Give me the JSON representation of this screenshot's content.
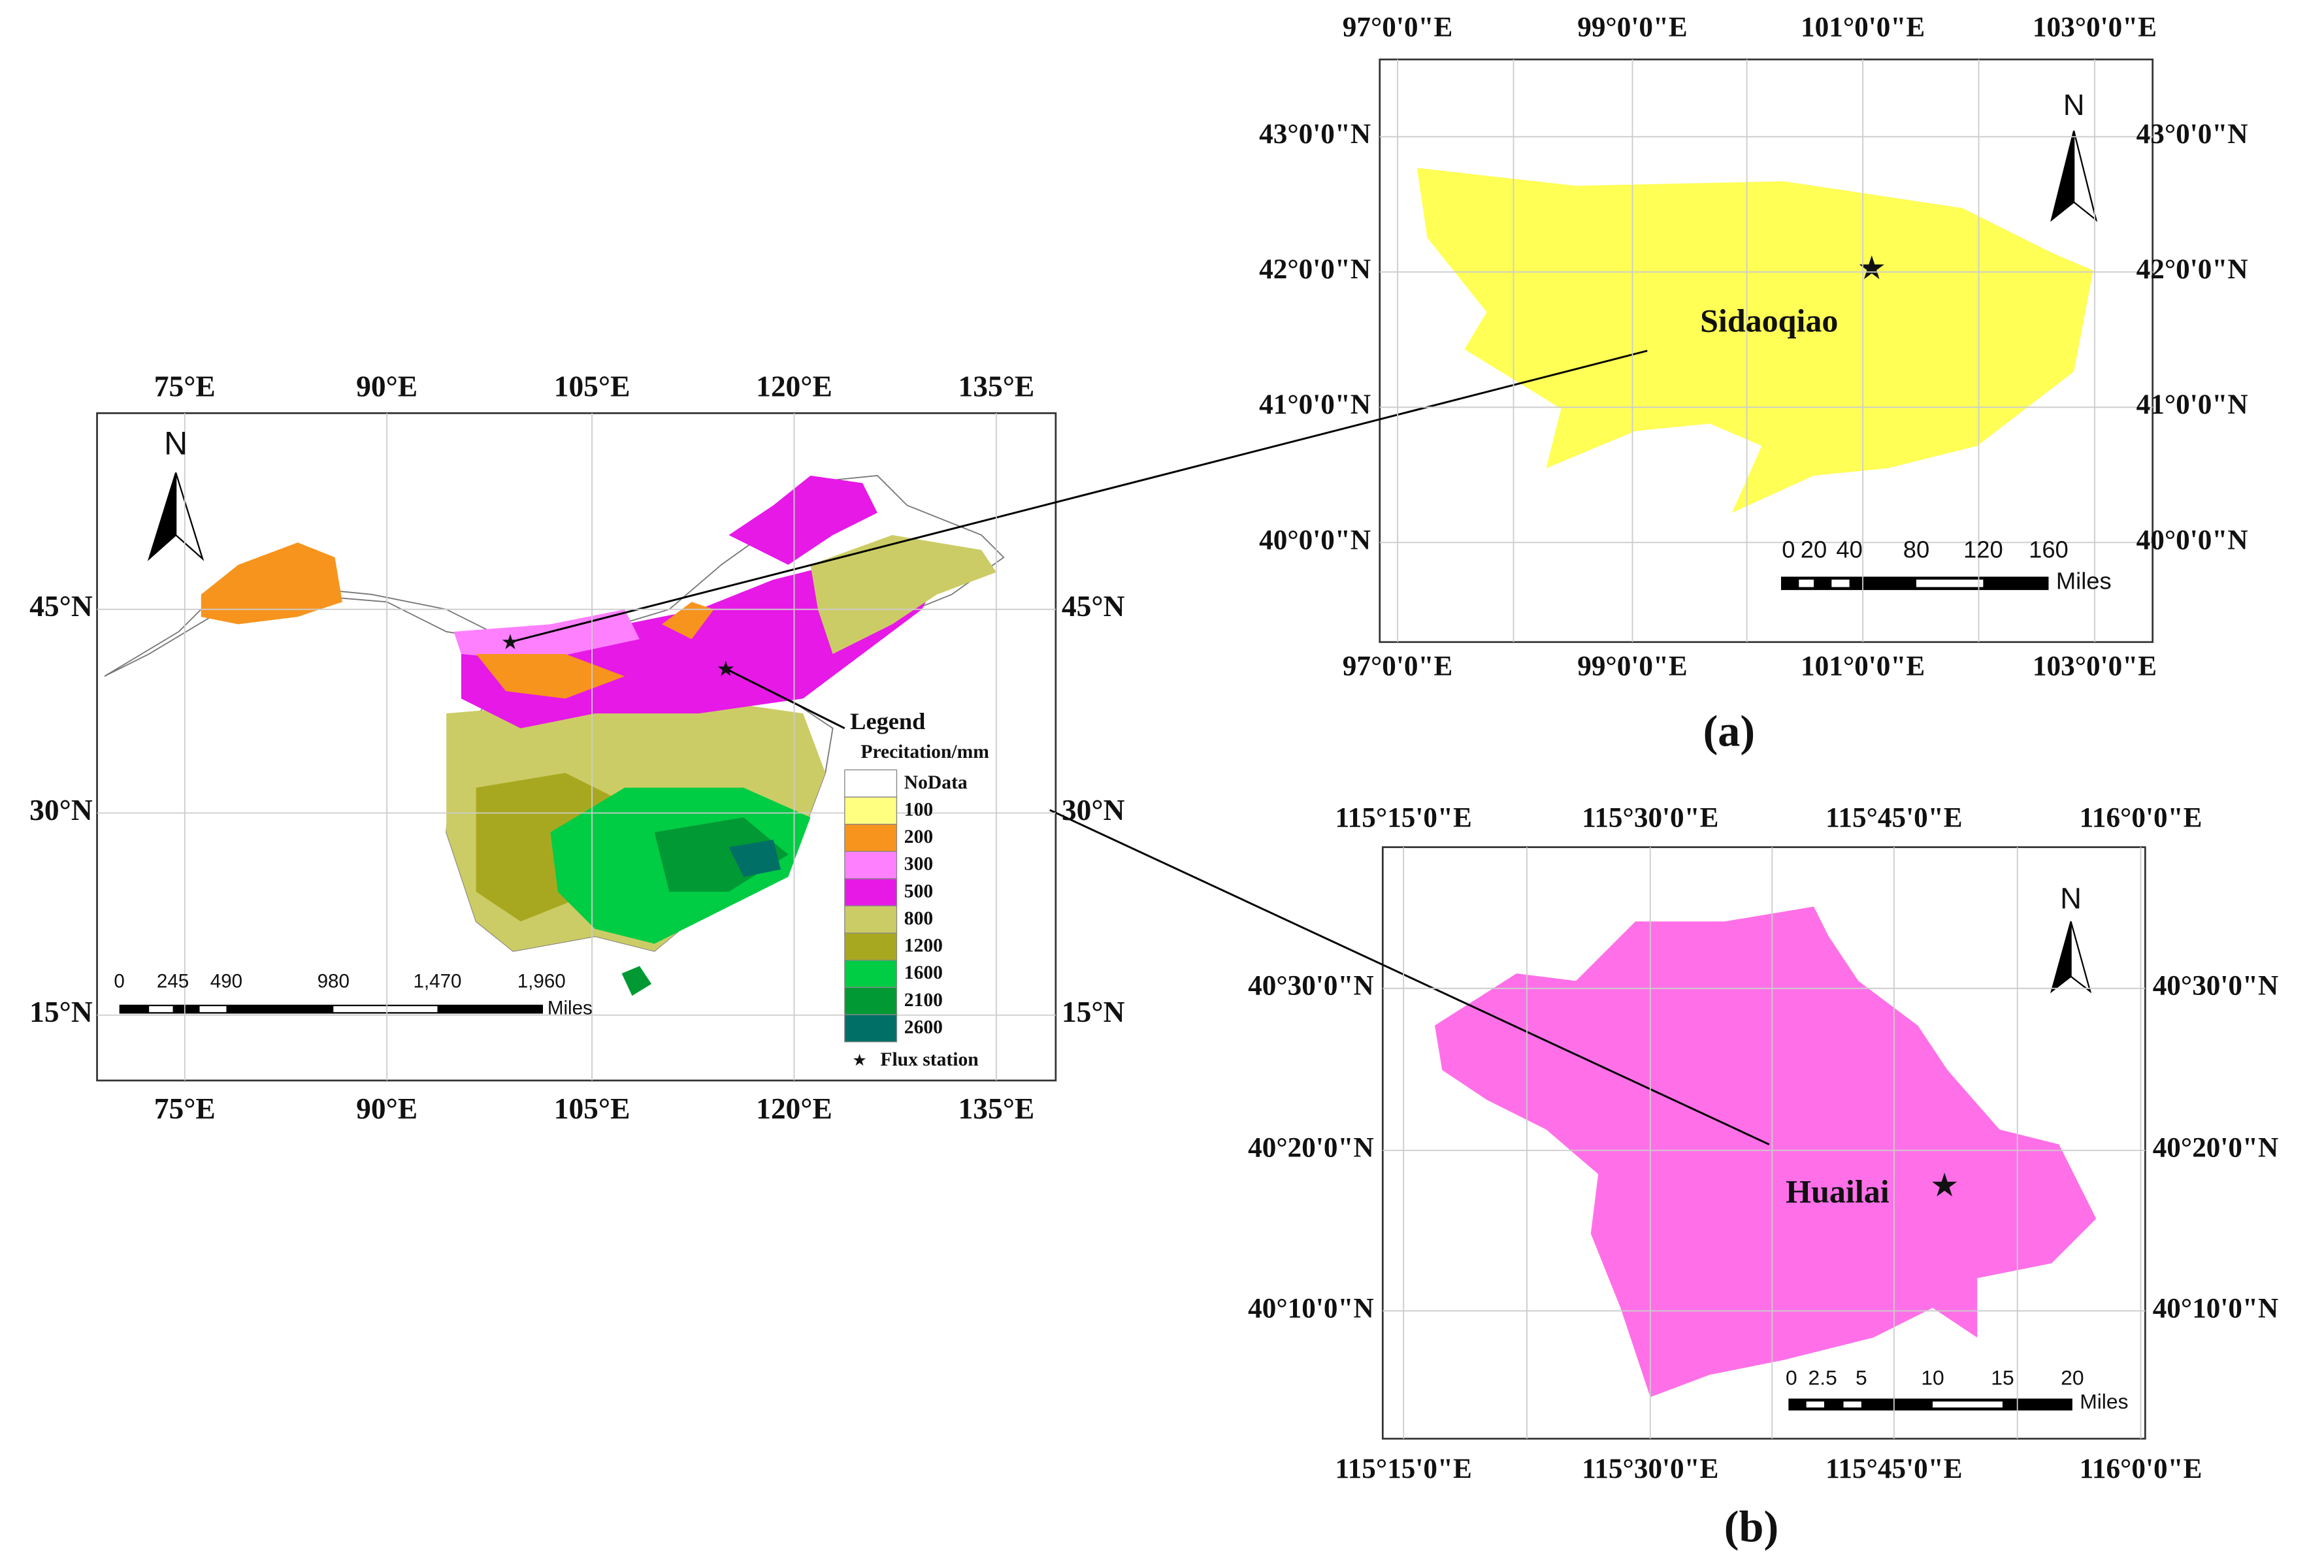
{
  "main_map": {
    "lon_labels": [
      "75°E",
      "90°E",
      "105°E",
      "120°E",
      "135°E"
    ],
    "lat_labels": [
      "45°N",
      "30°N",
      "15°N"
    ],
    "north": "N",
    "scale_labels": [
      "0",
      "245",
      "490",
      "980",
      "1,470",
      "1,960"
    ],
    "scale_unit": "Miles",
    "legend": {
      "title": "Legend",
      "subtitle": "Precitation/mm",
      "items": [
        {
          "label": "NoData",
          "color": "#ffffff"
        },
        {
          "label": "100",
          "color": "#ffff80"
        },
        {
          "label": "200",
          "color": "#f7941d"
        },
        {
          "label": "300",
          "color": "#ff80ff"
        },
        {
          "label": "500",
          "color": "#e619e6"
        },
        {
          "label": "800",
          "color": "#cccc66"
        },
        {
          "label": "1200",
          "color": "#a8a820"
        },
        {
          "label": "1600",
          "color": "#00cc44"
        },
        {
          "label": "2100",
          "color": "#009933"
        },
        {
          "label": "2600",
          "color": "#006f66"
        }
      ],
      "flux": "Flux station"
    }
  },
  "panel_a": {
    "lon_labels": [
      "97°0'0\"E",
      "99°0'0\"E",
      "101°0'0\"E",
      "103°0'0\"E"
    ],
    "lat_labels": [
      "43°0'0\"N",
      "42°0'0\"N",
      "41°0'0\"N",
      "40°0'0\"N"
    ],
    "site": "Sidaoqiao",
    "north": "N",
    "scale_labels": [
      "0",
      "20",
      "40",
      "80",
      "120",
      "160"
    ],
    "scale_unit": "Miles",
    "caption": "(a)"
  },
  "panel_b": {
    "lon_labels": [
      "115°15'0\"E",
      "115°30'0\"E",
      "115°45'0\"E",
      "116°0'0\"E"
    ],
    "lat_labels": [
      "40°30'0\"N",
      "40°20'0\"N",
      "40°10'0\"N"
    ],
    "site": "Huailai",
    "north": "N",
    "scale_labels": [
      "0",
      "2.5",
      "5",
      "10",
      "15",
      "20"
    ],
    "scale_unit": "Miles",
    "caption": "(b)"
  }
}
